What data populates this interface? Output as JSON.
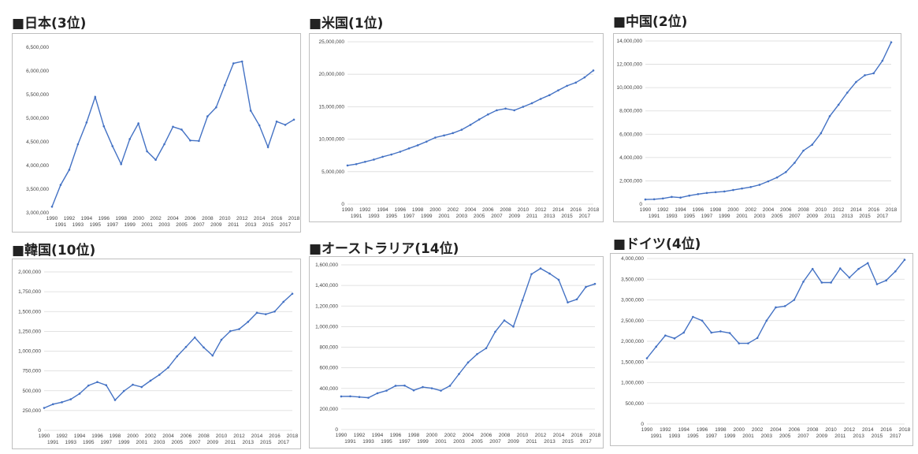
{
  "colors": {
    "series": "#4472c4",
    "grid": "#d9d9d9",
    "border": "#bfbfbf",
    "tick_text": "#444444"
  },
  "chart_data": [
    {
      "type": "line",
      "title": "■日本(3位)",
      "xlabel": "",
      "ylabel": "",
      "x": [
        1990,
        1991,
        1992,
        1993,
        1994,
        1995,
        1996,
        1997,
        1998,
        1999,
        2000,
        2001,
        2002,
        2003,
        2004,
        2005,
        2006,
        2007,
        2008,
        2009,
        2010,
        2011,
        2012,
        2013,
        2014,
        2015,
        2016,
        2017,
        2018
      ],
      "series": [
        {
          "values": [
            3130000,
            3590000,
            3910000,
            4450000,
            4910000,
            5450000,
            4830000,
            4410000,
            4030000,
            4560000,
            4890000,
            4300000,
            4120000,
            4450000,
            4820000,
            4760000,
            4530000,
            4520000,
            5040000,
            5230000,
            5700000,
            6160000,
            6200000,
            5160000,
            4850000,
            4390000,
            4930000,
            4860000,
            4970000
          ]
        }
      ],
      "ylim": [
        3000000,
        6500000
      ],
      "yticks": [
        "3,000,000",
        "3,500,000",
        "4,000,000",
        "4,500,000",
        "5,000,000",
        "5,500,000",
        "6,000,000",
        "6,500,000"
      ],
      "grid": false,
      "legend": "none"
    },
    {
      "type": "line",
      "title": "■米国(1位)",
      "xlabel": "",
      "ylabel": "",
      "x": [
        1990,
        1991,
        1992,
        1993,
        1994,
        1995,
        1996,
        1997,
        1998,
        1999,
        2000,
        2001,
        2002,
        2003,
        2004,
        2005,
        2006,
        2007,
        2008,
        2009,
        2010,
        2011,
        2012,
        2013,
        2014,
        2015,
        2016,
        2017,
        2018
      ],
      "series": [
        {
          "values": [
            5960000,
            6160000,
            6520000,
            6860000,
            7290000,
            7640000,
            8070000,
            8580000,
            9060000,
            9630000,
            10250000,
            10580000,
            10940000,
            11460000,
            12210000,
            13040000,
            13810000,
            14450000,
            14710000,
            14450000,
            14990000,
            15540000,
            16200000,
            16780000,
            17520000,
            18220000,
            18710000,
            19520000,
            20580000
          ]
        }
      ],
      "ylim": [
        0,
        25000000
      ],
      "yticks": [
        "0",
        "5,000,000",
        "10,000,000",
        "15,000,000",
        "20,000,000",
        "25,000,000"
      ],
      "grid": true,
      "legend": "none"
    },
    {
      "type": "line",
      "title": "■中国(2位)",
      "xlabel": "",
      "ylabel": "",
      "x": [
        1990,
        1991,
        1992,
        1993,
        1994,
        1995,
        1996,
        1997,
        1998,
        1999,
        2000,
        2001,
        2002,
        2003,
        2004,
        2005,
        2006,
        2007,
        2008,
        2009,
        2010,
        2011,
        2012,
        2013,
        2014,
        2015,
        2016,
        2017,
        2018
      ],
      "series": [
        {
          "values": [
            400000,
            420000,
            490000,
            620000,
            560000,
            730000,
            860000,
            960000,
            1030000,
            1090000,
            1210000,
            1340000,
            1470000,
            1660000,
            1960000,
            2290000,
            2750000,
            3550000,
            4590000,
            5100000,
            6090000,
            7550000,
            8530000,
            9570000,
            10480000,
            11060000,
            11230000,
            12310000,
            13890000
          ]
        }
      ],
      "ylim": [
        0,
        14000000
      ],
      "yticks": [
        "0",
        "2,000,000",
        "4,000,000",
        "6,000,000",
        "8,000,000",
        "10,000,000",
        "12,000,000",
        "14,000,000"
      ],
      "grid": true,
      "legend": "none"
    },
    {
      "type": "line",
      "title": "■韓国(10位)",
      "xlabel": "",
      "ylabel": "",
      "x": [
        1990,
        1991,
        1992,
        1993,
        1994,
        1995,
        1996,
        1997,
        1998,
        1999,
        2000,
        2001,
        2002,
        2003,
        2004,
        2005,
        2006,
        2007,
        2008,
        2009,
        2010,
        2011,
        2012,
        2013,
        2014,
        2015,
        2016,
        2017,
        2018
      ],
      "series": [
        {
          "values": [
            283000,
            330000,
            355000,
            392000,
            463000,
            566000,
            610000,
            570000,
            382000,
            497000,
            576000,
            547000,
            627000,
            702000,
            793000,
            935000,
            1053000,
            1172000,
            1047000,
            944000,
            1144000,
            1253000,
            1278000,
            1370000,
            1484000,
            1466000,
            1500000,
            1623000,
            1725000
          ]
        }
      ],
      "ylim": [
        0,
        2000000
      ],
      "yticks": [
        "0",
        "250,000",
        "500,000",
        "750,000",
        "1,000,000",
        "1,250,000",
        "1,500,000",
        "1,750,000",
        "2,000,000"
      ],
      "grid": true,
      "legend": "none"
    },
    {
      "type": "line",
      "title": "■オーストラリア(14位)",
      "xlabel": "",
      "ylabel": "",
      "x": [
        1990,
        1991,
        1992,
        1993,
        1994,
        1995,
        1996,
        1997,
        1998,
        1999,
        2000,
        2001,
        2002,
        2003,
        2004,
        2005,
        2006,
        2007,
        2008,
        2009,
        2010,
        2011,
        2012,
        2013,
        2014,
        2015,
        2016,
        2017,
        2018
      ],
      "series": [
        {
          "values": [
            322000,
            323000,
            316000,
            309000,
            353000,
            378000,
            425000,
            427000,
            381000,
            413000,
            401000,
            378000,
            425000,
            540000,
            652000,
            733000,
            790000,
            950000,
            1060000,
            1000000,
            1255000,
            1510000,
            1565000,
            1515000,
            1455000,
            1235000,
            1265000,
            1385000,
            1415000
          ]
        }
      ],
      "ylim": [
        0,
        1600000
      ],
      "yticks": [
        "0",
        "200,000",
        "400,000",
        "600,000",
        "800,000",
        "1,000,000",
        "1,200,000",
        "1,400,000",
        "1,600,000"
      ],
      "grid": true,
      "legend": "none"
    },
    {
      "type": "line",
      "title": "■ドイツ(4位)",
      "xlabel": "",
      "ylabel": "",
      "x": [
        1990,
        1991,
        1992,
        1993,
        1994,
        1995,
        1996,
        1997,
        1998,
        1999,
        2000,
        2001,
        2002,
        2003,
        2004,
        2005,
        2006,
        2007,
        2008,
        2009,
        2010,
        2011,
        2012,
        2013,
        2014,
        2015,
        2016,
        2017,
        2018
      ],
      "series": [
        {
          "values": [
            1590000,
            1870000,
            2140000,
            2070000,
            2210000,
            2590000,
            2500000,
            2210000,
            2240000,
            2200000,
            1950000,
            1950000,
            2080000,
            2500000,
            2820000,
            2850000,
            3000000,
            3440000,
            3750000,
            3420000,
            3420000,
            3760000,
            3540000,
            3750000,
            3890000,
            3380000,
            3470000,
            3690000,
            3970000
          ]
        }
      ],
      "ylim": [
        0,
        4000000
      ],
      "yticks": [
        "0",
        "500,000",
        "1,000,000",
        "1,500,000",
        "2,000,000",
        "2,500,000",
        "3,000,000",
        "3,500,000",
        "4,000,000"
      ],
      "grid": true,
      "legend": "none"
    }
  ]
}
